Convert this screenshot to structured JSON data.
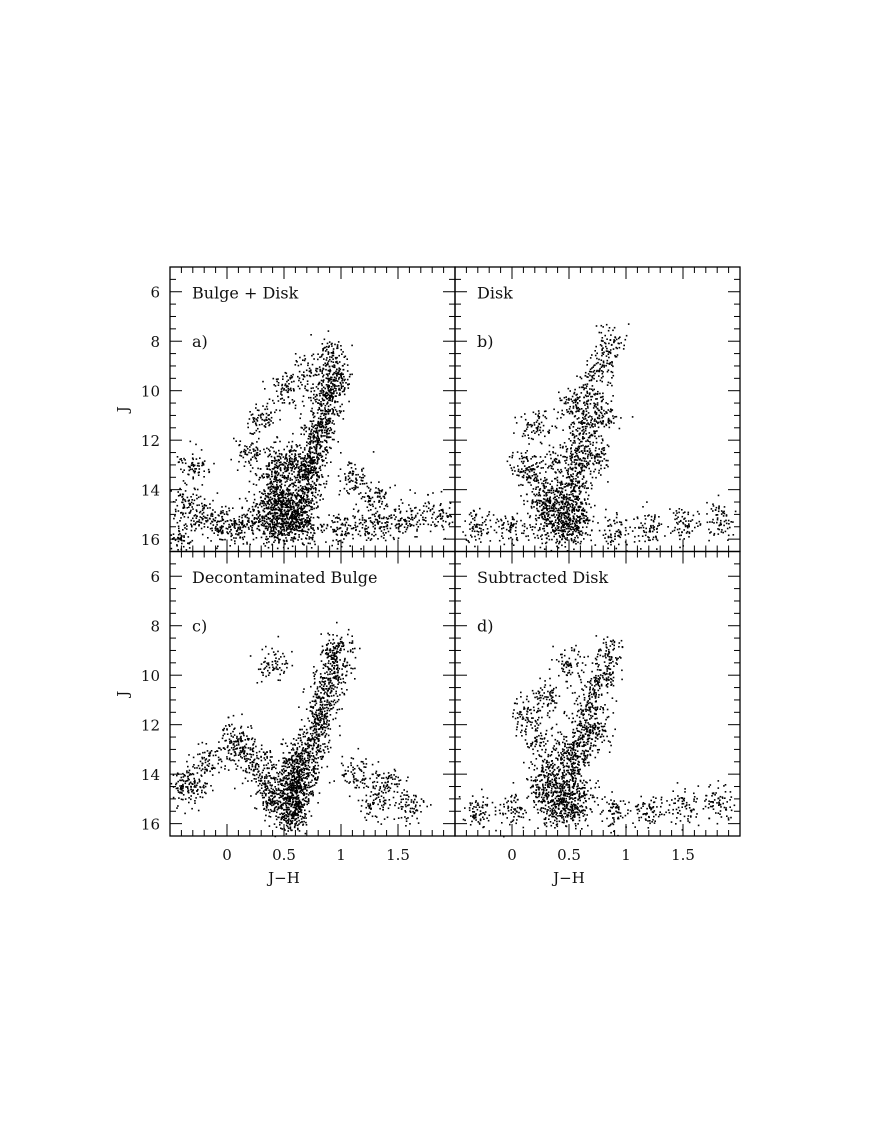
{
  "chart_data": {
    "type": "scatter",
    "xlabel": "J−H",
    "ylabel": "J",
    "xlim": [
      -0.5,
      2.0
    ],
    "ylim": [
      16.5,
      5.0
    ],
    "y_inverted": true,
    "xticks": [
      0,
      0.5,
      1,
      1.5
    ],
    "xtick_labels": [
      "0",
      "0.5",
      "1",
      "1.5"
    ],
    "yticks": [
      6,
      8,
      10,
      12,
      14,
      16
    ],
    "ytick_labels": [
      "6",
      "8",
      "10",
      "12",
      "14",
      "16"
    ],
    "grid": false,
    "marker_color": "#000000",
    "panels": [
      {
        "id": "a",
        "title": "Bulge + Disk",
        "tag": "a)",
        "points": [
          [
            0.95,
            9.2
          ],
          [
            0.92,
            9.6
          ],
          [
            0.9,
            10
          ],
          [
            0.87,
            10.5
          ],
          [
            0.85,
            10.9
          ],
          [
            0.82,
            11.4
          ],
          [
            0.8,
            11.8
          ],
          [
            0.77,
            12.2
          ],
          [
            0.74,
            12.7
          ],
          [
            0.72,
            13.1
          ],
          [
            0.7,
            13.6
          ],
          [
            0.68,
            14
          ],
          [
            0.66,
            14.5
          ],
          [
            0.64,
            15
          ],
          [
            0.4,
            13.5
          ],
          [
            0.45,
            14
          ],
          [
            0.5,
            14.3
          ],
          [
            0.55,
            14.6
          ],
          [
            0.45,
            14.9
          ],
          [
            0.55,
            15.1
          ],
          [
            0.6,
            15.4
          ],
          [
            0.4,
            15.3
          ],
          [
            0.35,
            15.6
          ],
          [
            0.5,
            15.6
          ],
          [
            0.62,
            13.2
          ],
          [
            0.55,
            12.6
          ],
          [
            0.45,
            13
          ],
          [
            0.38,
            14.4
          ],
          [
            0.3,
            14.8
          ],
          [
            0.7,
            15.6
          ],
          [
            -0.4,
            14.5
          ],
          [
            -0.25,
            15
          ],
          [
            -0.1,
            15.3
          ],
          [
            0.05,
            15.6
          ],
          [
            0.15,
            15.4
          ],
          [
            1.0,
            15.6
          ],
          [
            1.2,
            15.5
          ],
          [
            1.4,
            15.3
          ],
          [
            1.6,
            15.2
          ],
          [
            1.85,
            15.0
          ],
          [
            -0.4,
            15.8
          ],
          [
            0.3,
            11
          ],
          [
            0.5,
            10
          ],
          [
            0.7,
            9.3
          ],
          [
            0.2,
            12.5
          ],
          [
            0.9,
            8.4
          ],
          [
            1.1,
            13.5
          ],
          [
            1.3,
            14.3
          ],
          [
            -0.3,
            13
          ]
        ]
      },
      {
        "id": "b",
        "title": "Disk",
        "tag": "b)",
        "points": [
          [
            0.75,
            9
          ],
          [
            0.7,
            10
          ],
          [
            0.65,
            11
          ],
          [
            0.62,
            11.8
          ],
          [
            0.6,
            12.5
          ],
          [
            0.58,
            13.2
          ],
          [
            0.55,
            13.8
          ],
          [
            0.5,
            14.3
          ],
          [
            0.45,
            14.8
          ],
          [
            0.4,
            15.1
          ],
          [
            0.5,
            15.3
          ],
          [
            0.3,
            15
          ],
          [
            0.35,
            14.2
          ],
          [
            0.25,
            14.6
          ],
          [
            0.6,
            15
          ],
          [
            0.55,
            15.6
          ],
          [
            0.35,
            15.7
          ],
          [
            0.2,
            13.5
          ],
          [
            0.4,
            12.8
          ],
          [
            0.75,
            12.5
          ],
          [
            0.8,
            11
          ],
          [
            0.85,
            8
          ],
          [
            -0.3,
            15.5
          ],
          [
            0,
            15.6
          ],
          [
            0.9,
            15.6
          ],
          [
            1.2,
            15.5
          ],
          [
            1.5,
            15.4
          ],
          [
            1.8,
            15.2
          ],
          [
            0.2,
            11.5
          ],
          [
            0.5,
            10.5
          ],
          [
            0.1,
            13
          ]
        ]
      },
      {
        "id": "c",
        "title": "Decontaminated Bulge",
        "tag": "c)",
        "points": [
          [
            0.98,
            8.8
          ],
          [
            0.95,
            9.3
          ],
          [
            0.92,
            9.8
          ],
          [
            0.88,
            10.4
          ],
          [
            0.85,
            10.9
          ],
          [
            0.82,
            11.4
          ],
          [
            0.79,
            11.9
          ],
          [
            0.76,
            12.4
          ],
          [
            0.73,
            12.9
          ],
          [
            0.7,
            13.4
          ],
          [
            0.67,
            13.9
          ],
          [
            0.65,
            14.4
          ],
          [
            0.62,
            14.8
          ],
          [
            0.6,
            15.2
          ],
          [
            0.58,
            15.6
          ],
          [
            0.55,
            13.8
          ],
          [
            0.58,
            14.3
          ],
          [
            0.52,
            14.6
          ],
          [
            0.5,
            15.2
          ],
          [
            0.55,
            15.8
          ],
          [
            0.6,
            13.3
          ],
          [
            0.4,
            15.2
          ],
          [
            0.35,
            14.6
          ],
          [
            0.3,
            13.8
          ],
          [
            0.2,
            13.3
          ],
          [
            0.05,
            13
          ],
          [
            -0.2,
            13.5
          ],
          [
            -0.4,
            14.3
          ],
          [
            -0.3,
            14.6
          ],
          [
            1.3,
            15.2
          ],
          [
            1.6,
            15.3
          ],
          [
            1.1,
            14
          ],
          [
            1.4,
            14.3
          ],
          [
            0.4,
            9.5
          ],
          [
            0.1,
            12.5
          ]
        ]
      },
      {
        "id": "d",
        "title": "Subtracted Disk",
        "tag": "d)",
        "points": [
          [
            0.85,
            9
          ],
          [
            0.8,
            10
          ],
          [
            0.7,
            10.8
          ],
          [
            0.65,
            11.5
          ],
          [
            0.62,
            12.2
          ],
          [
            0.6,
            12.8
          ],
          [
            0.55,
            13.4
          ],
          [
            0.5,
            14
          ],
          [
            0.45,
            14.5
          ],
          [
            0.4,
            15
          ],
          [
            0.5,
            15.2
          ],
          [
            0.3,
            14.8
          ],
          [
            0.35,
            13.8
          ],
          [
            0.25,
            14.3
          ],
          [
            0.6,
            14.8
          ],
          [
            0.55,
            15.5
          ],
          [
            0.35,
            15.6
          ],
          [
            0.45,
            13
          ],
          [
            0.2,
            12.5
          ],
          [
            0.1,
            11.5
          ],
          [
            0.75,
            12.2
          ],
          [
            -0.3,
            15.5
          ],
          [
            0,
            15.5
          ],
          [
            0.9,
            15.5
          ],
          [
            1.2,
            15.4
          ],
          [
            1.5,
            15.3
          ],
          [
            1.8,
            15.1
          ],
          [
            0.5,
            9.5
          ],
          [
            0.3,
            10.8
          ]
        ]
      }
    ]
  }
}
